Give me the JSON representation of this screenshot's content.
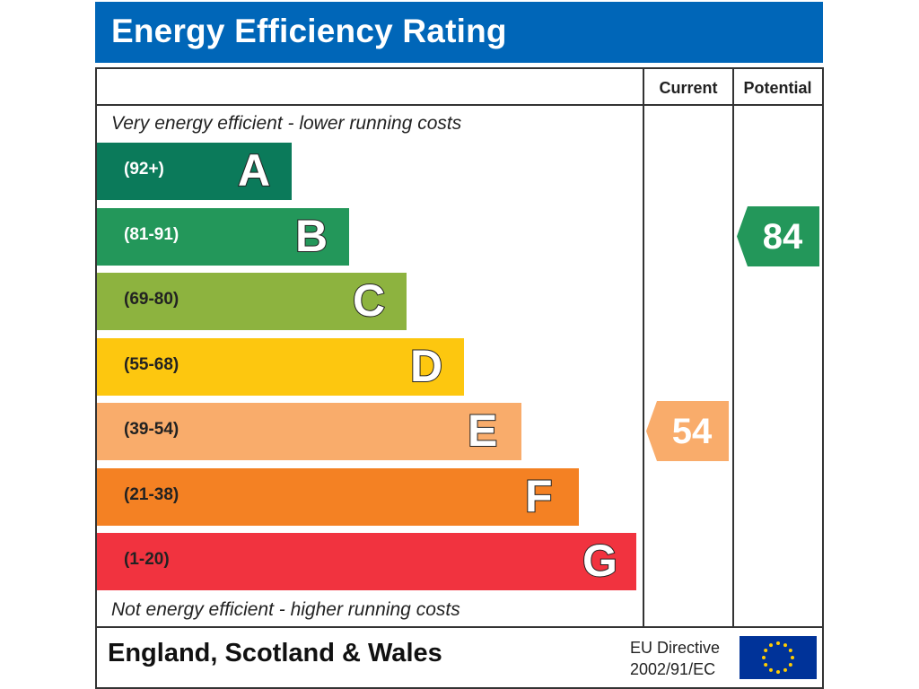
{
  "chart_data": {
    "type": "table",
    "title": "Energy Efficiency Rating",
    "columns": [
      "Current",
      "Potential"
    ],
    "top_caption": "Very energy efficient - lower running costs",
    "bottom_caption": "Not energy efficient - higher running costs",
    "bands": [
      {
        "letter": "A",
        "range": "(92+)",
        "min": 92,
        "max": 100,
        "color": "#0b7a5a",
        "text_color": "#ffffff"
      },
      {
        "letter": "B",
        "range": "(81-91)",
        "min": 81,
        "max": 91,
        "color": "#23975a",
        "text_color": "#ffffff"
      },
      {
        "letter": "C",
        "range": "(69-80)",
        "min": 69,
        "max": 80,
        "color": "#8db33f",
        "text_color": "#222222"
      },
      {
        "letter": "D",
        "range": "(55-68)",
        "min": 55,
        "max": 68,
        "color": "#fdc70f",
        "text_color": "#222222"
      },
      {
        "letter": "E",
        "range": "(39-54)",
        "min": 39,
        "max": 54,
        "color": "#f9ac6b",
        "text_color": "#222222"
      },
      {
        "letter": "F",
        "range": "(21-38)",
        "min": 21,
        "max": 38,
        "color": "#f48123",
        "text_color": "#222222"
      },
      {
        "letter": "G",
        "range": "(1-20)",
        "min": 1,
        "max": 20,
        "color": "#f1333f",
        "text_color": "#222222"
      }
    ],
    "current": {
      "value": 54,
      "band": "E",
      "color": "#f9ac6b"
    },
    "potential": {
      "value": 84,
      "band": "B",
      "color": "#23975a"
    },
    "footer": {
      "region": "England, Scotland & Wales",
      "directive_line1": "EU Directive",
      "directive_line2": "2002/91/EC"
    }
  }
}
